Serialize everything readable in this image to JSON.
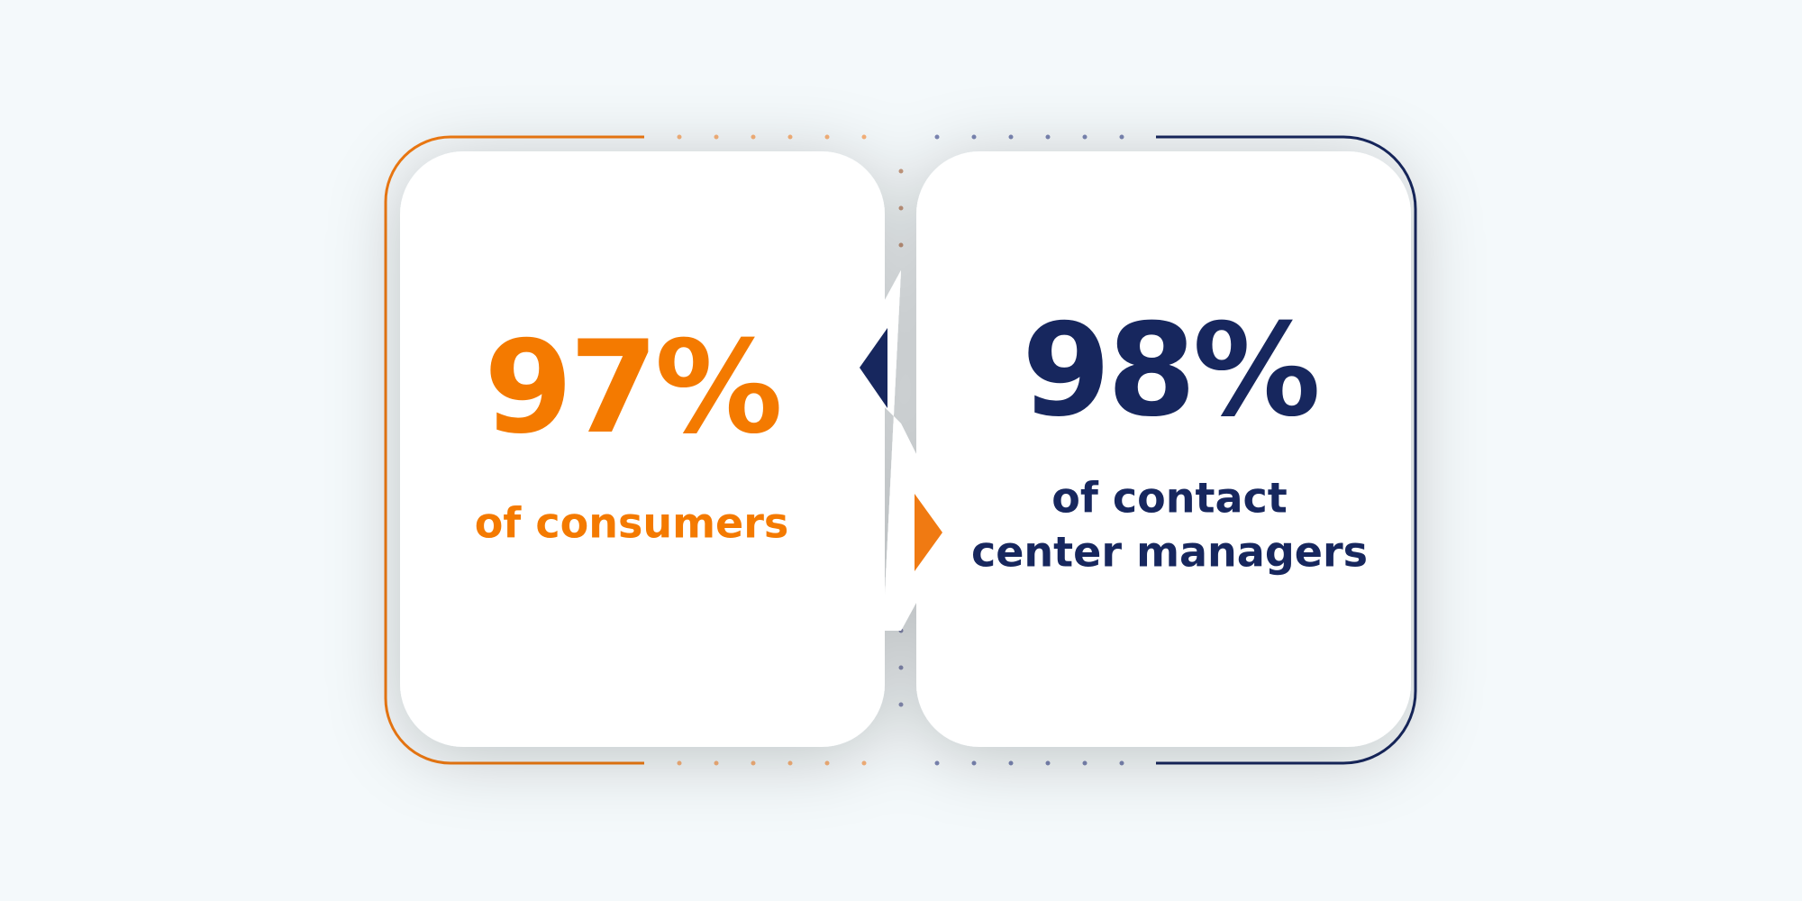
{
  "cards": [
    {
      "stat": "97%",
      "caption": [
        "of consumers"
      ]
    },
    {
      "stat": "98%",
      "caption": [
        "of contact",
        "center managers"
      ]
    }
  ]
}
